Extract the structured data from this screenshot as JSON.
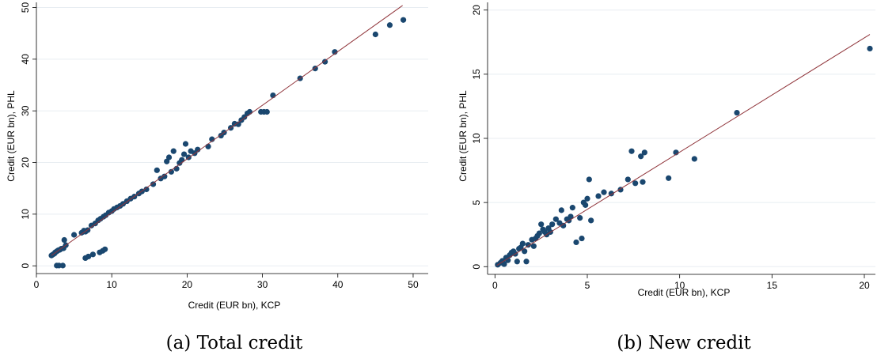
{
  "colors": {
    "marker": "#1a476f",
    "fit_line": "#90353b",
    "grid": "#e8edf2",
    "axis": "#000000"
  },
  "chart_data": [
    {
      "type": "scatter",
      "caption": "(a) Total credit",
      "xlabel": "Credit (EUR bn), KCP",
      "ylabel": "Credit (EUR bn), PHL",
      "xlim": [
        0,
        52
      ],
      "ylim": [
        -1.5,
        51
      ],
      "xticks": [
        0,
        10,
        20,
        30,
        40,
        50
      ],
      "yticks": [
        0,
        10,
        20,
        30,
        40,
        50
      ],
      "grid": true,
      "fit_line": [
        [
          2,
          2
        ],
        [
          48.6,
          50.4
        ]
      ],
      "points": [
        [
          2.0,
          2.0
        ],
        [
          2.2,
          2.2
        ],
        [
          2.4,
          2.4
        ],
        [
          2.5,
          2.6
        ],
        [
          2.7,
          2.8
        ],
        [
          2.9,
          3.0
        ],
        [
          3.1,
          3.1
        ],
        [
          3.3,
          3.3
        ],
        [
          3.6,
          3.4
        ],
        [
          3.9,
          4.0
        ],
        [
          2.7,
          0.05
        ],
        [
          3.0,
          0.05
        ],
        [
          3.5,
          0.05
        ],
        [
          3.7,
          5.0
        ],
        [
          5.0,
          6.0
        ],
        [
          6.0,
          6.4
        ],
        [
          6.3,
          6.8
        ],
        [
          6.5,
          6.6
        ],
        [
          6.8,
          6.9
        ],
        [
          7.3,
          7.8
        ],
        [
          7.8,
          8.2
        ],
        [
          8.2,
          8.8
        ],
        [
          8.5,
          9.1
        ],
        [
          8.9,
          9.5
        ],
        [
          6.5,
          1.5
        ],
        [
          6.9,
          1.8
        ],
        [
          7.5,
          2.2
        ],
        [
          8.4,
          2.6
        ],
        [
          8.8,
          2.9
        ],
        [
          9.1,
          3.2
        ],
        [
          9.2,
          9.8
        ],
        [
          9.6,
          10.3
        ],
        [
          10.0,
          10.6
        ],
        [
          10.3,
          11.0
        ],
        [
          10.7,
          11.3
        ],
        [
          11.1,
          11.6
        ],
        [
          11.5,
          12.0
        ],
        [
          12.0,
          12.5
        ],
        [
          12.5,
          13.0
        ],
        [
          13.0,
          13.4
        ],
        [
          13.6,
          14.0
        ],
        [
          14.0,
          14.4
        ],
        [
          14.6,
          14.8
        ],
        [
          15.5,
          15.8
        ],
        [
          16.0,
          18.5
        ],
        [
          16.5,
          16.9
        ],
        [
          17.0,
          17.3
        ],
        [
          17.3,
          20.2
        ],
        [
          17.6,
          21.0
        ],
        [
          17.9,
          18.2
        ],
        [
          18.2,
          22.2
        ],
        [
          18.6,
          18.8
        ],
        [
          19.0,
          19.9
        ],
        [
          19.3,
          20.5
        ],
        [
          19.6,
          21.6
        ],
        [
          19.8,
          23.6
        ],
        [
          20.2,
          21.0
        ],
        [
          20.5,
          22.2
        ],
        [
          21.0,
          21.8
        ],
        [
          21.4,
          22.5
        ],
        [
          22.8,
          23.1
        ],
        [
          23.3,
          24.5
        ],
        [
          24.5,
          25.2
        ],
        [
          24.9,
          25.8
        ],
        [
          25.8,
          26.7
        ],
        [
          26.3,
          27.5
        ],
        [
          26.8,
          27.4
        ],
        [
          27.2,
          28.2
        ],
        [
          27.6,
          28.8
        ],
        [
          28.0,
          29.5
        ],
        [
          28.3,
          29.8
        ],
        [
          29.8,
          29.8
        ],
        [
          30.2,
          29.8
        ],
        [
          30.6,
          29.8
        ],
        [
          31.4,
          33.0
        ],
        [
          35.0,
          36.3
        ],
        [
          37.0,
          38.2
        ],
        [
          38.3,
          39.5
        ],
        [
          39.6,
          41.4
        ],
        [
          45.0,
          44.8
        ],
        [
          46.9,
          46.6
        ],
        [
          48.7,
          47.6
        ]
      ]
    },
    {
      "type": "scatter",
      "caption": "(b) New credit",
      "xlabel": "Credit (EUR bn), KCP",
      "ylabel": "Credit (EUR bn), PHL",
      "xlim": [
        -0.4,
        20.6
      ],
      "ylim": [
        -0.6,
        20.6
      ],
      "xticks": [
        0,
        5,
        10,
        15,
        20
      ],
      "yticks": [
        0,
        5,
        10,
        15,
        20
      ],
      "grid": true,
      "fit_line": [
        [
          0.1,
          0.1
        ],
        [
          20.3,
          18.1
        ]
      ],
      "points": [
        [
          0.15,
          0.15
        ],
        [
          0.3,
          0.3
        ],
        [
          0.4,
          0.45
        ],
        [
          0.5,
          0.2
        ],
        [
          0.6,
          0.7
        ],
        [
          0.7,
          0.5
        ],
        [
          0.8,
          0.9
        ],
        [
          0.9,
          1.1
        ],
        [
          1.0,
          1.2
        ],
        [
          1.1,
          1.0
        ],
        [
          1.2,
          0.4
        ],
        [
          1.3,
          1.4
        ],
        [
          1.4,
          1.5
        ],
        [
          1.5,
          1.8
        ],
        [
          1.6,
          1.2
        ],
        [
          1.7,
          0.4
        ],
        [
          1.8,
          1.7
        ],
        [
          2.0,
          2.1
        ],
        [
          2.1,
          1.6
        ],
        [
          2.2,
          2.2
        ],
        [
          2.3,
          2.4
        ],
        [
          2.4,
          2.6
        ],
        [
          2.5,
          3.3
        ],
        [
          2.6,
          2.9
        ],
        [
          2.7,
          2.7
        ],
        [
          2.8,
          2.5
        ],
        [
          2.9,
          3.0
        ],
        [
          3.0,
          2.7
        ],
        [
          3.1,
          3.3
        ],
        [
          3.3,
          3.7
        ],
        [
          3.5,
          3.4
        ],
        [
          3.6,
          4.4
        ],
        [
          3.7,
          3.2
        ],
        [
          3.9,
          3.7
        ],
        [
          4.0,
          3.6
        ],
        [
          4.1,
          3.9
        ],
        [
          4.2,
          4.6
        ],
        [
          4.4,
          1.9
        ],
        [
          4.6,
          3.8
        ],
        [
          4.7,
          2.2
        ],
        [
          4.8,
          5.0
        ],
        [
          4.9,
          4.8
        ],
        [
          5.0,
          5.3
        ],
        [
          5.1,
          6.8
        ],
        [
          5.2,
          3.6
        ],
        [
          5.6,
          5.5
        ],
        [
          5.9,
          5.8
        ],
        [
          6.3,
          5.7
        ],
        [
          6.8,
          6.0
        ],
        [
          7.2,
          6.8
        ],
        [
          7.4,
          9.0
        ],
        [
          7.6,
          6.5
        ],
        [
          7.9,
          8.6
        ],
        [
          8.0,
          6.6
        ],
        [
          8.1,
          8.9
        ],
        [
          9.4,
          6.9
        ],
        [
          9.8,
          8.9
        ],
        [
          10.8,
          8.4
        ],
        [
          13.1,
          12.0
        ],
        [
          20.3,
          17.0
        ]
      ]
    }
  ]
}
